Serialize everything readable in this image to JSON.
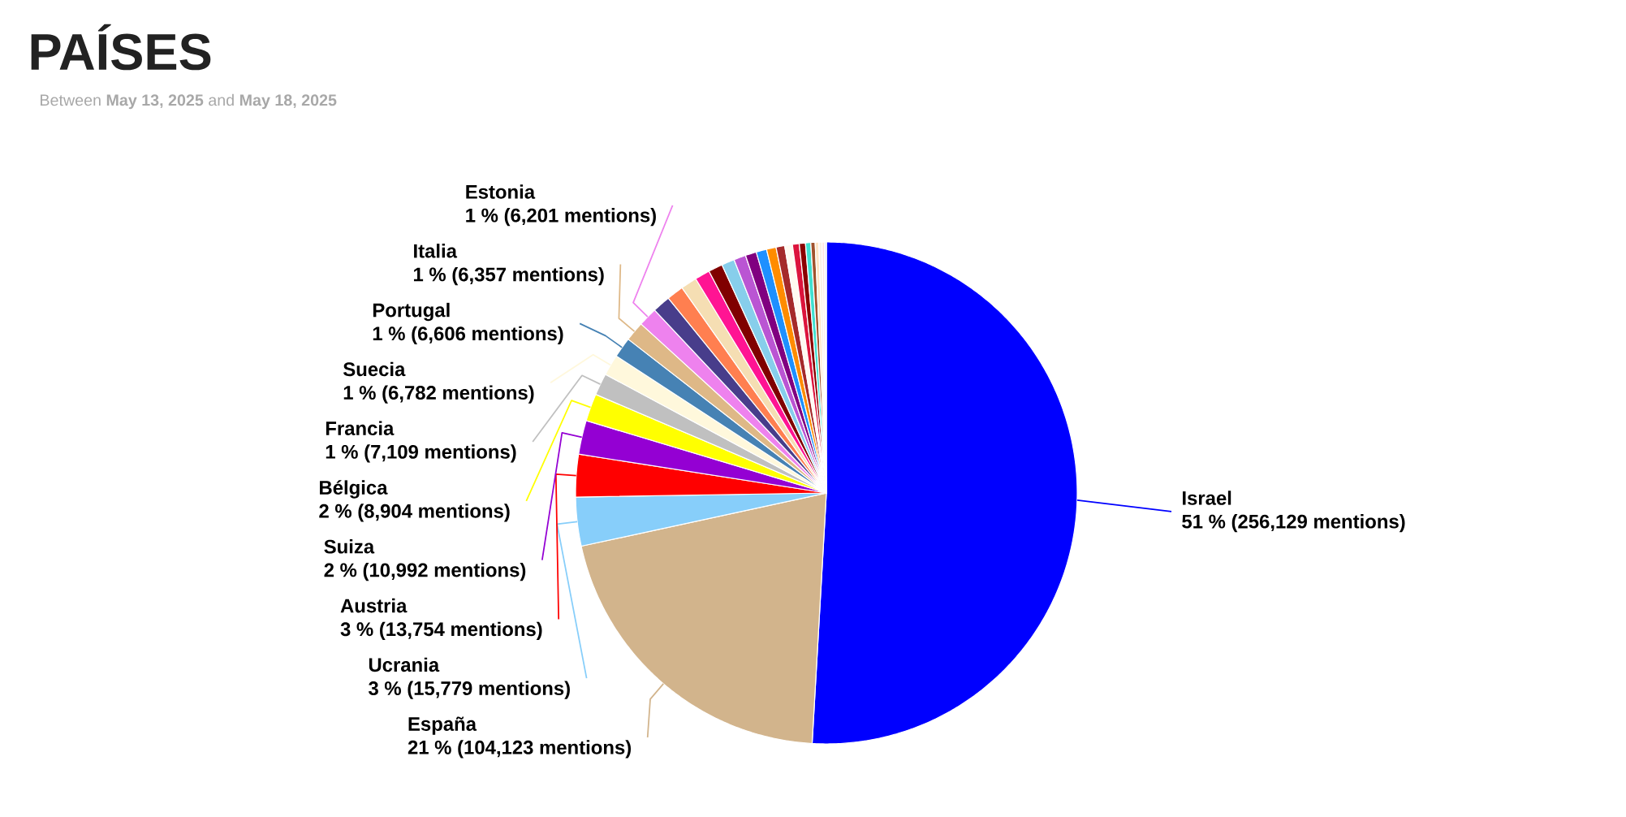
{
  "chart_data": {
    "type": "pie",
    "title": "PAÍSES",
    "subtitle": "Between **May 13, 2025** and **May 18, 2025**",
    "categories": [
      "Israel",
      "España",
      "Ucrania",
      "Austria",
      "Suiza",
      "Bélgica",
      "Francia",
      "Suecia",
      "Portugal",
      "Italia",
      "Estonia",
      null,
      null,
      null,
      null,
      null,
      null,
      null,
      null,
      null,
      null,
      null,
      null,
      null,
      null,
      null,
      null,
      null,
      null,
      null,
      null
    ],
    "values": [
      256129,
      104123,
      15779,
      13754,
      10992,
      8904,
      7109,
      6782,
      6606,
      6357,
      6201,
      5800,
      5500,
      5200,
      4900,
      4600,
      4200,
      3900,
      3600,
      3400,
      3100,
      2800,
      2500,
      2200,
      2000,
      1700,
      1400,
      1200,
      1000,
      800,
      600
    ],
    "value_labels": [
      "51 % (256,129 mentions)",
      "21 % (104,123 mentions)",
      "3 % (15,779 mentions)",
      "3 % (13,754 mentions)",
      "2 % (10,992 mentions)",
      "2 % (8,904 mentions)",
      "1 % (7,109 mentions)",
      "1 % (6,782 mentions)",
      "1 % (6,606 mentions)",
      "1 % (6,357 mentions)",
      "1 % (6,201 mentions)",
      null,
      null,
      null,
      null,
      null,
      null,
      null,
      null,
      null,
      null,
      null,
      null,
      null,
      null,
      null,
      null,
      null,
      null,
      null,
      null
    ],
    "colors": [
      "#0000ff",
      "#d2b48c",
      "#87cefa",
      "#ff0000",
      "#9400d3",
      "#ffff00",
      "#c0c0c0",
      "#fff8dc",
      "#4682b4",
      "#deb887",
      "#ee82ee",
      "#483d8b",
      "#ff7f50",
      "#f5deb3",
      "#ff1493",
      "#800000",
      "#87ceeb",
      "#ba55d3",
      "#800080",
      "#1e90ff",
      "#ff8c00",
      "#a52a2a",
      "#fffaf0",
      "#dc143c",
      "#8b0000",
      "#40e0d0",
      "#a0522d",
      "#ffe4c4",
      "#faf0e6",
      "#ffe4e1",
      "#e6e6fa"
    ]
  }
}
